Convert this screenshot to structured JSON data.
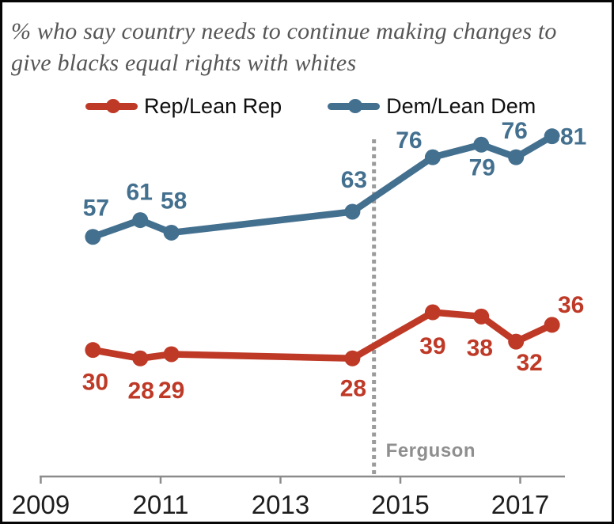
{
  "title": {
    "line1": "% who say country needs to continue making changes to",
    "line2": "give blacks equal rights with whites"
  },
  "legend": {
    "rep": "Rep/Lean Rep",
    "dem": "Dem/Lean Dem"
  },
  "colors": {
    "rep": "#bf3927",
    "dem": "#44708f",
    "axis": "#8c8c8c",
    "tick_label": "#1d1d1d",
    "annotation_line": "#9b9b9b",
    "annotation_text": "#8f8f8f",
    "title_text": "#565656",
    "border": "#060606"
  },
  "chart_data": {
    "type": "line",
    "title": "% who say country needs to continue making changes to give blacks equal rights with whites",
    "xlabel": "",
    "ylabel": "",
    "x_ticks": [
      2009,
      2011,
      2013,
      2015,
      2017
    ],
    "x_range": [
      2008.98,
      2017.76
    ],
    "ylim": [
      0,
      113
    ],
    "grid": false,
    "legend_position": "top",
    "annotation": {
      "label": "Ferguson",
      "x": 2014.56
    },
    "series": [
      {
        "name": "Rep/Lean Rep",
        "color": "#bf3927",
        "x": [
          2009.87,
          2010.66,
          2011.18,
          2014.2,
          2015.54,
          2016.35,
          2016.93,
          2017.53
        ],
        "values": [
          30,
          28,
          29,
          28,
          39,
          38,
          32,
          36
        ],
        "label_offsets": [
          [
            3,
            41
          ],
          [
            1,
            41
          ],
          [
            0,
            46
          ],
          [
            1,
            38
          ],
          [
            0,
            43
          ],
          [
            -2,
            40
          ],
          [
            17,
            27
          ],
          [
            24,
            -25
          ]
        ]
      },
      {
        "name": "Dem/Lean Dem",
        "color": "#44708f",
        "x": [
          2009.87,
          2010.66,
          2011.18,
          2014.2,
          2015.54,
          2016.35,
          2016.93,
          2017.53
        ],
        "values": [
          57,
          61,
          58,
          63,
          76,
          79,
          76,
          81
        ],
        "label_offsets": [
          [
            4,
            -36
          ],
          [
            -1,
            -35
          ],
          [
            3,
            -40
          ],
          [
            2,
            -40
          ],
          [
            -30,
            -21
          ],
          [
            1,
            29
          ],
          [
            -2,
            -33
          ],
          [
            27,
            1
          ]
        ]
      }
    ]
  }
}
